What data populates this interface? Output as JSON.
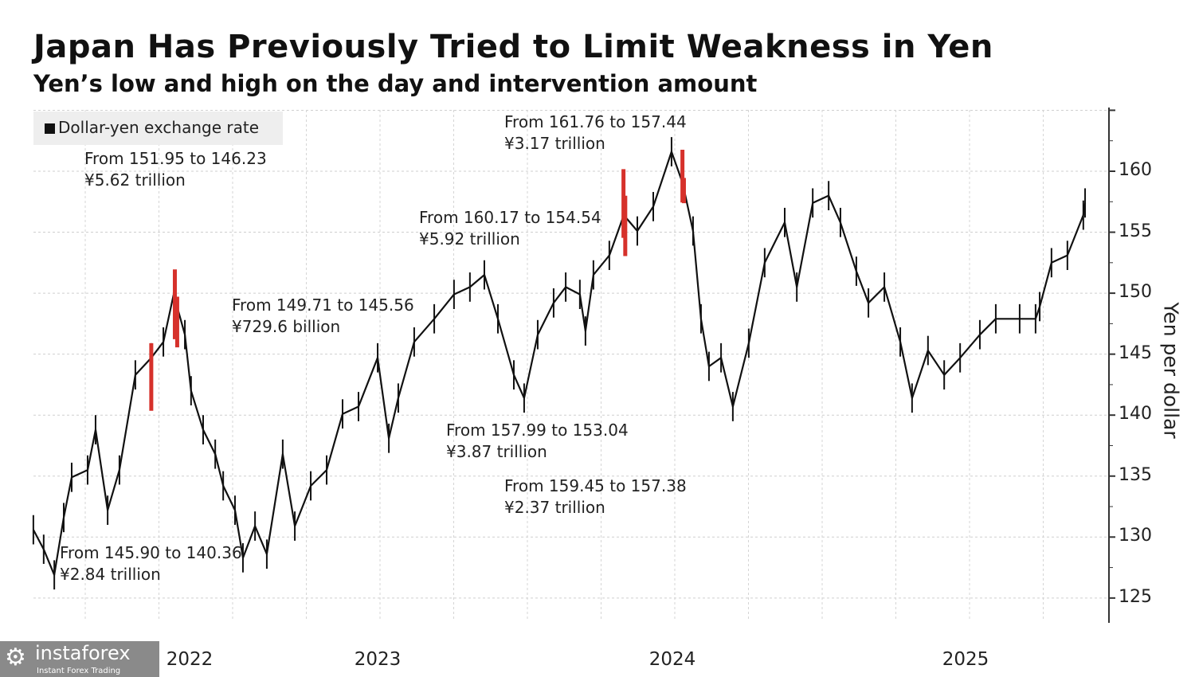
{
  "chart_data": {
    "type": "line",
    "title": "Japan Has Previously Tried to Limit Weakness in Yen",
    "subtitle": "Yen’s low and high on the day and intervention amount",
    "ylabel": "Yen per dollar",
    "xlabel": "",
    "ylim": [
      122,
      165
    ],
    "xlim": [
      2022.3,
      2025.95
    ],
    "y_ticks": [
      "125",
      "130",
      "135",
      "140",
      "145",
      "150",
      "155",
      "160"
    ],
    "x_ticks": [
      "2022",
      "2023",
      "2024",
      "2025"
    ],
    "grid": true,
    "legend": {
      "position": "top-left",
      "label": "Dollar-yen exchange rate"
    },
    "colors": {
      "line": "#111111",
      "intervention": "#d6312b"
    },
    "series": [
      {
        "name": "Dollar-yen exchange rate",
        "x": [
          2022.324,
          2022.359,
          2022.395,
          2022.427,
          2022.454,
          2022.508,
          2022.535,
          2022.576,
          2022.616,
          2022.67,
          2022.724,
          2022.765,
          2022.8,
          2022.838,
          2022.859,
          2022.9,
          2022.941,
          2022.968,
          2023.008,
          2023.035,
          2023.076,
          2023.116,
          2023.17,
          2023.211,
          2023.265,
          2023.319,
          2023.373,
          2023.427,
          2023.492,
          2023.53,
          2023.562,
          2023.616,
          2023.684,
          2023.751,
          2023.805,
          2023.854,
          2023.9,
          2023.954,
          2023.989,
          2024.035,
          2024.089,
          2024.13,
          2024.178,
          2024.197,
          2024.224,
          2024.278,
          2024.327,
          2024.373,
          2024.427,
          2024.489,
          2024.527,
          2024.562,
          2024.589,
          2024.616,
          2024.657,
          2024.697,
          2024.751,
          2024.805,
          2024.873,
          2024.914,
          2024.968,
          2025.022,
          2025.062,
          2025.116,
          2025.157,
          2025.211,
          2025.265,
          2025.305,
          2025.359,
          2025.414,
          2025.468,
          2025.535,
          2025.589,
          2025.67,
          2025.724,
          2025.738,
          2025.778,
          2025.832,
          2025.886,
          2025.892
        ],
        "values": [
          130.6,
          129.0,
          126.9,
          131.6,
          134.9,
          135.5,
          138.8,
          132.2,
          135.5,
          143.3,
          144.7,
          146.0,
          149.9,
          146.6,
          142.0,
          138.8,
          136.8,
          134.2,
          132.2,
          128.3,
          130.9,
          128.6,
          136.8,
          130.9,
          134.2,
          135.5,
          140.1,
          140.7,
          144.7,
          138.1,
          141.4,
          146.0,
          147.9,
          149.9,
          150.5,
          151.5,
          147.9,
          143.3,
          141.4,
          146.6,
          149.2,
          150.5,
          149.9,
          146.9,
          151.5,
          153.1,
          156.4,
          155.1,
          157.1,
          161.6,
          159.0,
          155.1,
          147.9,
          144.0,
          144.7,
          140.7,
          145.9,
          152.5,
          155.8,
          150.5,
          157.4,
          158.0,
          155.8,
          151.8,
          149.2,
          150.5,
          146.0,
          141.4,
          145.3,
          143.3,
          144.7,
          146.6,
          147.9,
          147.9,
          147.9,
          148.9,
          152.5,
          153.1,
          156.4,
          157.4
        ]
      }
    ],
    "interventions": [
      {
        "x": 2022.724,
        "high": 145.9,
        "low": 140.36,
        "text1": "From 145.90 to 140.36",
        "text2": "¥2.84 trillion"
      },
      {
        "x": 2022.804,
        "high": 151.95,
        "low": 146.23,
        "text1": "From 151.95 to 146.23",
        "text2": "¥5.62 trillion"
      },
      {
        "x": 2022.812,
        "high": 149.71,
        "low": 145.56,
        "text1": "From 149.71 to 145.56",
        "text2": "¥729.6 billion"
      },
      {
        "x": 2024.326,
        "high": 160.17,
        "low": 154.54,
        "text1": "From 160.17 to 154.54",
        "text2": "¥5.92 trillion"
      },
      {
        "x": 2024.332,
        "high": 157.99,
        "low": 153.04,
        "text1": "From 157.99 to 153.04",
        "text2": "¥3.87 trillion"
      },
      {
        "x": 2024.526,
        "high": 161.76,
        "low": 157.44,
        "text1": "From 161.76 to 157.44",
        "text2": "¥3.17 trillion"
      },
      {
        "x": 2024.531,
        "high": 159.45,
        "low": 157.38,
        "text1": "From 159.45 to 157.38",
        "text2": "¥2.37 trillion"
      }
    ]
  },
  "watermark": {
    "name": "instaforex",
    "tagline": "Instant Forex Trading"
  }
}
